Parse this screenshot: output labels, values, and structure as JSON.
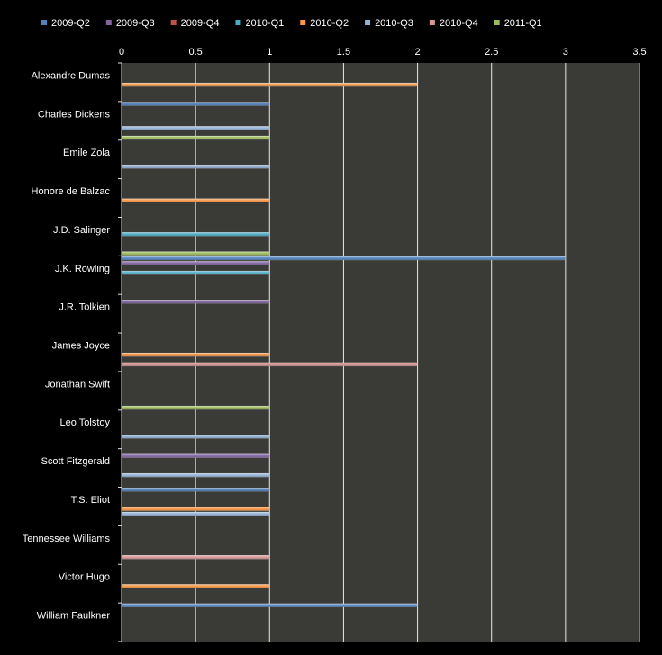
{
  "chart_data": {
    "type": "bar",
    "orientation": "horizontal",
    "title": "",
    "xlabel": "",
    "ylabel": "",
    "xlim": [
      0,
      3.5
    ],
    "x_ticks": [
      "0",
      "0.5",
      "1",
      "1.5",
      "2",
      "2.5",
      "3",
      "3.5"
    ],
    "grid": true,
    "legend_position": "top",
    "categories": [
      "Alexandre Dumas",
      "Charles Dickens",
      "Emile Zola",
      "Honore de Balzac",
      "J.D. Salinger",
      "J.K. Rowling",
      "J.R. Tolkien",
      "James Joyce",
      "Jonathan Swift",
      "Leo Tolstoy",
      "Scott Fitzgerald",
      "T.S. Eliot",
      "Tennessee Williams",
      "Victor Hugo",
      "William Faulkner"
    ],
    "series": [
      {
        "name": "2009-Q2",
        "color": "#4f81bd",
        "values": [
          0,
          1,
          0,
          0,
          0,
          3,
          0,
          0,
          0,
          0,
          0,
          1,
          0,
          0,
          2
        ]
      },
      {
        "name": "2009-Q3",
        "color": "#8064a2",
        "values": [
          0,
          0,
          0,
          0,
          0,
          1,
          1,
          0,
          0,
          0,
          1,
          0,
          0,
          0,
          0
        ]
      },
      {
        "name": "2009-Q4",
        "color": "#c0504d",
        "values": [
          0,
          0,
          0,
          0,
          0,
          0,
          0,
          0,
          0,
          0,
          0,
          0,
          0,
          0,
          0
        ]
      },
      {
        "name": "2010-Q1",
        "color": "#4bacc6",
        "values": [
          0,
          0,
          0,
          0,
          1,
          1,
          0,
          0,
          0,
          0,
          0,
          0,
          0,
          0,
          0
        ]
      },
      {
        "name": "2010-Q2",
        "color": "#f79646",
        "values": [
          2,
          0,
          0,
          1,
          0,
          0,
          0,
          1,
          0,
          0,
          0,
          1,
          0,
          1,
          0
        ]
      },
      {
        "name": "2010-Q3",
        "color": "#95b3d7",
        "values": [
          0,
          1,
          1,
          0,
          0,
          0,
          0,
          0,
          0,
          1,
          1,
          1,
          0,
          0,
          0
        ]
      },
      {
        "name": "2010-Q4",
        "color": "#d99694",
        "values": [
          0,
          0,
          0,
          0,
          0,
          0,
          0,
          2,
          0,
          0,
          0,
          0,
          1,
          0,
          0
        ]
      },
      {
        "name": "2011-Q1",
        "color": "#9bbb59",
        "values": [
          0,
          1,
          0,
          0,
          1,
          0,
          0,
          0,
          1,
          0,
          0,
          0,
          0,
          0,
          0
        ]
      }
    ]
  }
}
